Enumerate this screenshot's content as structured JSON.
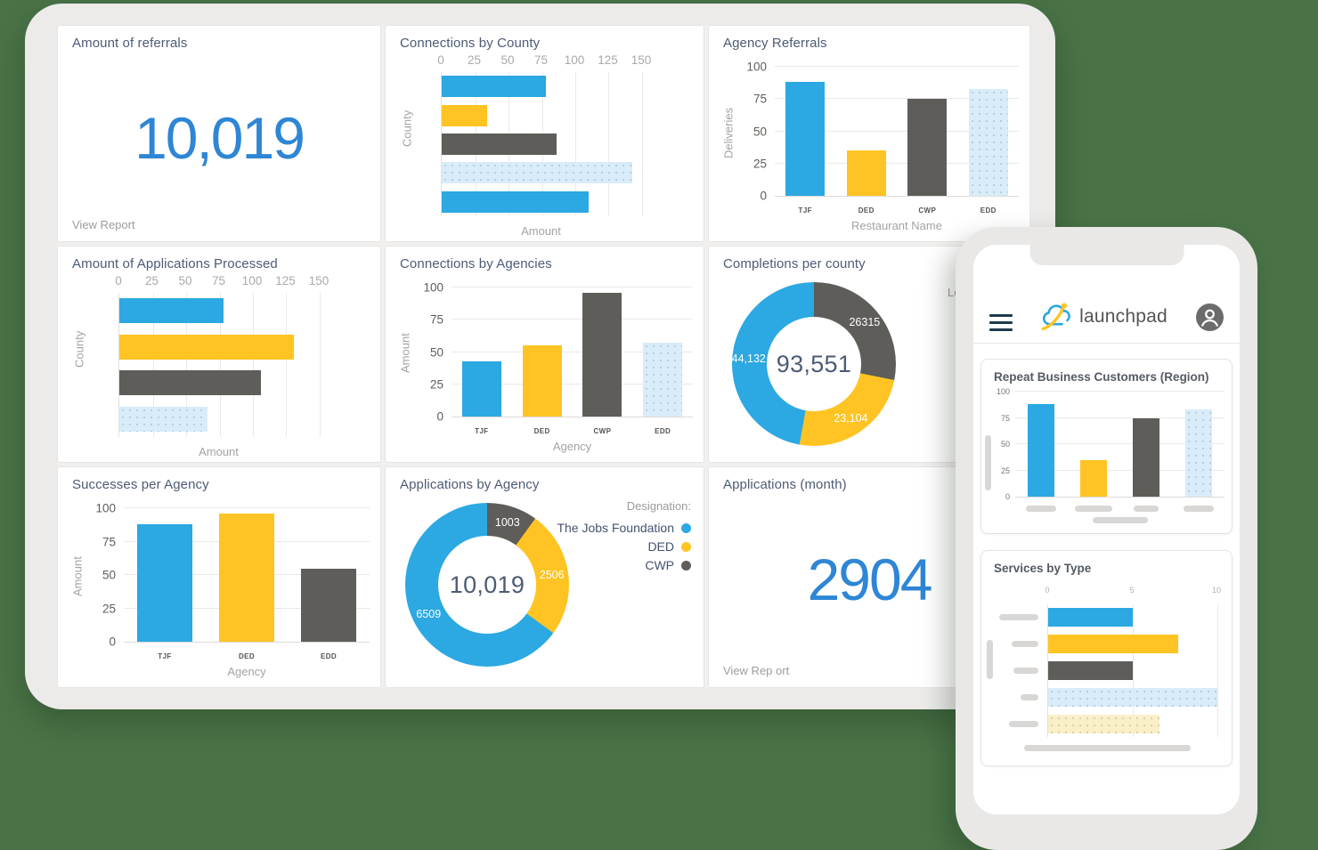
{
  "colors": {
    "background": "#497347",
    "blue": "#2CA8E2",
    "yellow": "#FFC423",
    "dark_gray": "#5F5D59",
    "light_blue": "#D8ECFA",
    "light_yellow": "#FBEFC7",
    "big_number_blue": "#2E86D5",
    "title_text": "#4D5B75"
  },
  "dashboard": {
    "cards": {
      "amount_referrals": {
        "title": "Amount of referrals",
        "value": "10,019",
        "link": "View Report"
      },
      "connections_county": {
        "title": "Connections by County"
      },
      "agency_referrals": {
        "title": "Agency Referrals"
      },
      "applications_processed": {
        "title": "Amount of Applications Processed"
      },
      "connections_agencies": {
        "title": "Connections by Agencies"
      },
      "completions_county": {
        "title": "Completions per county",
        "clipped_legend_text": "Le"
      },
      "successes_agency": {
        "title": "Successes per Agency"
      },
      "applications_by_agency": {
        "title": "Applications by Agency"
      },
      "applications_month": {
        "title": "Applications (month)",
        "value": "2904",
        "link": "View Rep ort"
      }
    }
  },
  "phone": {
    "header": {
      "logo_text": "launchpad"
    },
    "cards": {
      "repeat_business": {
        "title": "Repeat Business Customers (Region)"
      },
      "services_by_type": {
        "title": "Services by Type"
      }
    }
  },
  "chart_data": {
    "connections_county": {
      "type": "bar",
      "orientation": "horizontal",
      "title": "Connections by County",
      "values": [
        78,
        34,
        86,
        143,
        110
      ],
      "colors": [
        "#2CA8E2",
        "#FFC423",
        "#5F5D59",
        "#D8ECFA",
        "#2CA8E2"
      ],
      "patterns": [
        "solid",
        "solid",
        "solid",
        "dotted",
        "solid"
      ],
      "xlabel": "Amount",
      "ylabel": "County",
      "xlim": [
        0,
        150
      ],
      "xticks": [
        0,
        25,
        50,
        75,
        100,
        125,
        150
      ],
      "grid": true
    },
    "agency_referrals": {
      "type": "bar",
      "orientation": "vertical",
      "title": "Agency Referrals",
      "categories": [
        "TJF",
        "DED",
        "CWP",
        "EDD"
      ],
      "values": [
        88,
        35,
        75,
        83
      ],
      "colors": [
        "#2CA8E2",
        "#FFC423",
        "#5F5D59",
        "#D8ECFA"
      ],
      "patterns": [
        "solid",
        "solid",
        "solid",
        "dotted"
      ],
      "ylabel": "Deliveries",
      "xlabel": "Restaurant Name",
      "ylim": [
        0,
        100
      ],
      "yticks": [
        0,
        25,
        50,
        75,
        100
      ],
      "grid": true
    },
    "applications_processed": {
      "type": "bar",
      "orientation": "horizontal",
      "title": "Amount of Applications Processed",
      "values": [
        78,
        131,
        106,
        66
      ],
      "colors": [
        "#2CA8E2",
        "#FFC423",
        "#5F5D59",
        "#D8ECFA"
      ],
      "patterns": [
        "solid",
        "solid",
        "solid",
        "dotted"
      ],
      "xlabel": "Amount",
      "ylabel": "County",
      "xlim": [
        0,
        150
      ],
      "xticks": [
        0,
        25,
        50,
        75,
        100,
        125,
        150
      ],
      "grid": true
    },
    "connections_agencies": {
      "type": "bar",
      "orientation": "vertical",
      "title": "Connections by Agencies",
      "categories": [
        "TJF",
        "DED",
        "CWP",
        "EDD"
      ],
      "values": [
        43,
        55,
        96,
        57
      ],
      "colors": [
        "#2CA8E2",
        "#FFC423",
        "#5F5D59",
        "#D8ECFA"
      ],
      "patterns": [
        "solid",
        "solid",
        "solid",
        "dotted"
      ],
      "ylabel": "Amount",
      "xlabel": "Agency",
      "ylim": [
        0,
        100
      ],
      "yticks": [
        0,
        25,
        50,
        75,
        100
      ],
      "grid": true
    },
    "completions_county": {
      "type": "pie",
      "donut": true,
      "title": "Completions per county",
      "center_total": "93,551",
      "label_radius_pct": 40,
      "segments": [
        {
          "label": "26315",
          "value": 26315,
          "color": "#5F5D59"
        },
        {
          "label": "23,104",
          "value": 23104,
          "color": "#FFC423"
        },
        {
          "label": "44,132",
          "value": 44132,
          "color": "#2CA8E2"
        }
      ]
    },
    "successes_agency": {
      "type": "bar",
      "orientation": "vertical",
      "title": "Successes per Agency",
      "categories": [
        "TJF",
        "DED",
        "EDD"
      ],
      "values": [
        88,
        96,
        55
      ],
      "colors": [
        "#2CA8E2",
        "#FFC423",
        "#5F5D59"
      ],
      "patterns": [
        "solid",
        "solid",
        "solid"
      ],
      "ylabel": "Amount",
      "xlabel": "Agency",
      "ylim": [
        0,
        100
      ],
      "yticks": [
        0,
        25,
        50,
        75,
        100
      ],
      "grid": true
    },
    "applications_by_agency": {
      "type": "pie",
      "donut": true,
      "title": "Applications by Agency",
      "center_total": "10,019",
      "label_radius_pct": 40,
      "segments": [
        {
          "label": "1003",
          "value": 1003,
          "color": "#5F5D59",
          "name": "CWP"
        },
        {
          "label": "2506",
          "value": 2506,
          "color": "#FFC423",
          "name": "DED"
        },
        {
          "label": "6509",
          "value": 6509,
          "color": "#2CA8E2",
          "name": "The Jobs Foundation"
        }
      ],
      "legend": {
        "title": "Designation:",
        "position": "top-right",
        "entries": [
          {
            "label": "The Jobs Foundation",
            "color": "#2CA8E2"
          },
          {
            "label": "DED",
            "color": "#FFC423"
          },
          {
            "label": "CWP",
            "color": "#5F5D59"
          }
        ]
      }
    },
    "repeat_business": {
      "type": "bar",
      "orientation": "vertical",
      "title": "Repeat Business Customers (Region)",
      "values": [
        88,
        35,
        75,
        83
      ],
      "colors": [
        "#2CA8E2",
        "#FFC423",
        "#5F5D59",
        "#D8ECFA"
      ],
      "patterns": [
        "solid",
        "solid",
        "solid",
        "dotted"
      ],
      "ylim": [
        0,
        100
      ],
      "yticks": [
        0,
        25,
        50,
        75,
        100
      ],
      "grid": true,
      "skeleton": {
        "category_pills": [
          34,
          42,
          28,
          34
        ],
        "ylabel_pill": 62,
        "xlabel_pill": 62
      }
    },
    "services_by_type": {
      "type": "bar",
      "orientation": "horizontal",
      "title": "Services by Type",
      "values": [
        5,
        7.7,
        5,
        10,
        6.6
      ],
      "colors": [
        "#2CA8E2",
        "#FFC423",
        "#5F5D59",
        "#D8ECFA",
        "#FBEFC7"
      ],
      "patterns": [
        "solid",
        "solid",
        "solid",
        "dotted",
        "dotted"
      ],
      "xlim": [
        0,
        10
      ],
      "xticks": [
        0,
        5,
        10
      ],
      "grid": true,
      "skeleton": {
        "category_pills": [
          44,
          30,
          28,
          20,
          33
        ],
        "ylabel_pill": 44,
        "bottom_pill": 187
      }
    }
  }
}
